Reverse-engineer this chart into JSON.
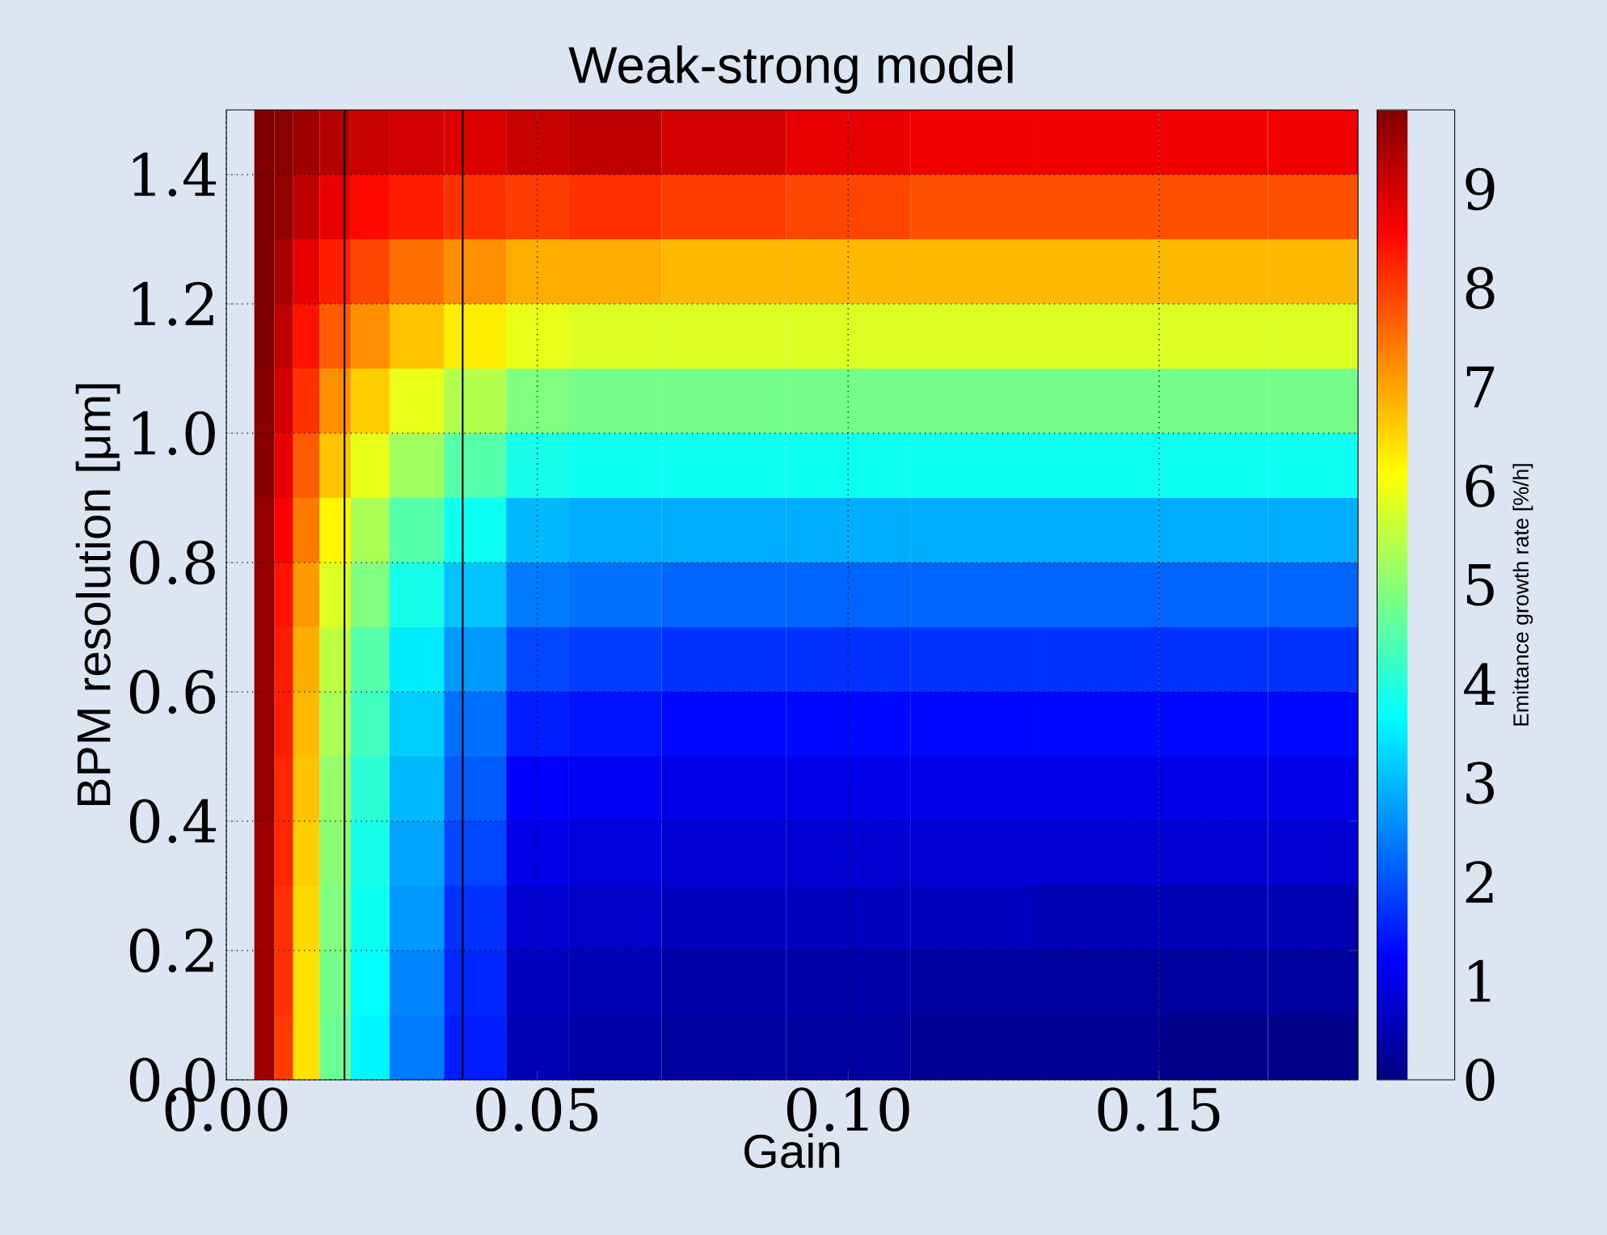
{
  "chart_data": {
    "type": "heatmap",
    "title": "Weak-strong model",
    "xlabel": "Gain",
    "ylabel": "BPM resolution [μm]",
    "clabel": "Emittance growth rate [%/h]",
    "x": [
      0.0025,
      0.0065,
      0.009,
      0.0125,
      0.0175,
      0.0225,
      0.03,
      0.04,
      0.05,
      0.06,
      0.08,
      0.1,
      0.12,
      0.14,
      0.16,
      0.175
    ],
    "y": [
      1.45,
      1.35,
      1.25,
      1.15,
      1.05,
      0.95,
      0.85,
      0.75,
      0.65,
      0.55,
      0.45,
      0.35,
      0.25,
      0.15,
      0.05
    ],
    "cells": [
      [
        null,
        9.8,
        9.7,
        9.5,
        9.3,
        9.1,
        9.0,
        8.9,
        9.1,
        9.2,
        9.0,
        8.8,
        8.7,
        8.7,
        8.7,
        8.7
      ],
      [
        null,
        9.8,
        9.6,
        9.2,
        8.8,
        8.5,
        8.3,
        8.1,
        8.0,
        8.1,
        8.0,
        7.9,
        7.8,
        7.8,
        7.8,
        7.8
      ],
      [
        null,
        9.8,
        9.4,
        8.8,
        8.3,
        7.9,
        7.5,
        7.2,
        6.9,
        6.9,
        6.8,
        6.8,
        6.8,
        6.8,
        6.8,
        6.8
      ],
      [
        null,
        9.8,
        9.2,
        8.4,
        7.7,
        7.2,
        6.7,
        6.3,
        5.9,
        5.8,
        5.8,
        5.8,
        5.8,
        5.8,
        5.8,
        5.8
      ],
      [
        null,
        9.7,
        9.0,
        8.1,
        7.2,
        6.6,
        5.9,
        5.4,
        4.9,
        4.8,
        4.8,
        4.8,
        4.8,
        4.8,
        4.8,
        4.8
      ],
      [
        null,
        9.7,
        8.8,
        7.7,
        6.7,
        5.9,
        5.2,
        4.5,
        3.9,
        3.8,
        3.8,
        3.8,
        3.8,
        3.8,
        3.8,
        3.8
      ],
      [
        null,
        9.6,
        8.6,
        7.4,
        6.2,
        5.3,
        4.5,
        3.8,
        3.0,
        2.9,
        2.9,
        2.9,
        2.9,
        2.9,
        2.9,
        2.9
      ],
      [
        null,
        9.6,
        8.4,
        7.1,
        5.8,
        4.9,
        3.9,
        3.1,
        2.4,
        2.3,
        2.2,
        2.2,
        2.2,
        2.2,
        2.2,
        2.2
      ],
      [
        null,
        9.6,
        8.3,
        6.9,
        5.5,
        4.5,
        3.5,
        2.7,
        1.9,
        1.8,
        1.7,
        1.7,
        1.7,
        1.7,
        1.7,
        1.7
      ],
      [
        null,
        9.6,
        8.3,
        6.8,
        5.3,
        4.3,
        3.2,
        2.3,
        1.5,
        1.4,
        1.3,
        1.3,
        1.3,
        1.3,
        1.3,
        1.3
      ],
      [
        null,
        9.6,
        8.2,
        6.7,
        5.1,
        4.1,
        3.0,
        2.1,
        1.2,
        1.1,
        1.0,
        1.0,
        1.0,
        1.0,
        1.0,
        1.0
      ],
      [
        null,
        9.5,
        8.2,
        6.6,
        5.0,
        3.9,
        2.8,
        1.9,
        1.0,
        0.9,
        0.8,
        0.8,
        0.8,
        0.8,
        0.8,
        0.8
      ],
      [
        null,
        9.5,
        8.1,
        6.5,
        4.9,
        3.8,
        2.7,
        1.7,
        0.8,
        0.7,
        0.6,
        0.6,
        0.6,
        0.5,
        0.5,
        0.5
      ],
      [
        null,
        9.5,
        8.1,
        6.4,
        4.8,
        3.7,
        2.5,
        1.6,
        0.6,
        0.5,
        0.4,
        0.4,
        0.3,
        0.3,
        0.3,
        0.3
      ],
      [
        null,
        9.5,
        8.0,
        6.4,
        4.7,
        3.6,
        2.4,
        1.5,
        0.5,
        0.4,
        0.3,
        0.3,
        0.2,
        0.2,
        0.1,
        0.1
      ]
    ],
    "xlim": [
      0,
      0.182
    ],
    "ylim": [
      0,
      1.5
    ],
    "xticks": [
      {
        "value": 0,
        "label": "0.00"
      },
      {
        "value": 0.05,
        "label": "0.05"
      },
      {
        "value": 0.1,
        "label": "0.10"
      },
      {
        "value": 0.15,
        "label": "0.15"
      }
    ],
    "yticks": [
      {
        "value": 0,
        "label": "0.0"
      },
      {
        "value": 0.2,
        "label": "0.2"
      },
      {
        "value": 0.4,
        "label": "0.4"
      },
      {
        "value": 0.6,
        "label": "0.6"
      },
      {
        "value": 0.8,
        "label": "0.8"
      },
      {
        "value": 1.0,
        "label": "1.0"
      },
      {
        "value": 1.2,
        "label": "1.2"
      },
      {
        "value": 1.4,
        "label": "1.4"
      }
    ],
    "clim": [
      0,
      9.8
    ],
    "cticks": [
      0,
      1,
      2,
      3,
      4,
      5,
      6,
      7,
      8,
      9
    ],
    "grid": true,
    "ref_lines": [
      {
        "axis": "x",
        "value": 0.019,
        "color": "#000000"
      },
      {
        "axis": "x",
        "value": 0.038,
        "color": "#000000"
      }
    ]
  }
}
